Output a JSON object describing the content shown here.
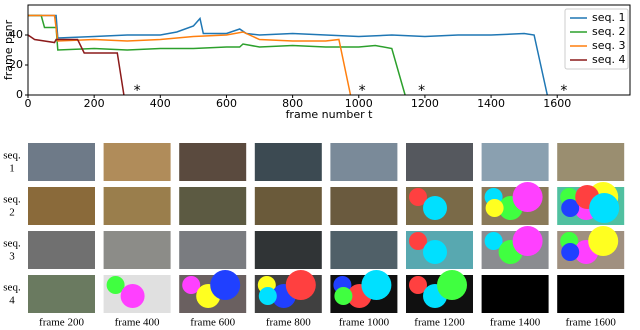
{
  "chart_data": {
    "type": "line",
    "xlabel": "frame number t",
    "ylabel": "frame psnr",
    "xlim": [
      0,
      1820
    ],
    "ylim": [
      0,
      60
    ],
    "xticks": [
      0,
      200,
      400,
      600,
      800,
      1000,
      1200,
      1400,
      1600
    ],
    "yticks": [
      0,
      20,
      40
    ],
    "legend": "upper right",
    "series": [
      {
        "name": "seq. 1",
        "color": "#1f77b4",
        "x": [
          0,
          85,
          90,
          200,
          300,
          400,
          450,
          500,
          520,
          530,
          600,
          640,
          660,
          700,
          800,
          900,
          1000,
          1100,
          1200,
          1300,
          1400,
          1500,
          1530,
          1570
        ],
        "values": [
          53,
          53,
          38,
          39,
          40,
          40,
          42,
          46,
          51,
          41,
          41,
          44,
          41,
          40,
          41,
          40,
          39,
          40,
          39,
          40,
          40,
          41,
          40,
          0
        ]
      },
      {
        "name": "seq. 2",
        "color": "#2ca02c",
        "x": [
          0,
          40,
          50,
          85,
          90,
          200,
          300,
          400,
          500,
          600,
          640,
          650,
          700,
          800,
          900,
          1000,
          1050,
          1100,
          1140
        ],
        "values": [
          53,
          53,
          45,
          45,
          30,
          31,
          30,
          31,
          31,
          32,
          32,
          34,
          32,
          33,
          32,
          32,
          33,
          31,
          0
        ]
      },
      {
        "name": "seq. 3",
        "color": "#ff7f0e",
        "x": [
          0,
          80,
          90,
          200,
          300,
          400,
          500,
          600,
          650,
          700,
          800,
          900,
          940,
          975
        ],
        "values": [
          53,
          53,
          36,
          37,
          36,
          37,
          39,
          40,
          42,
          37,
          36,
          36,
          37,
          0
        ]
      },
      {
        "name": "seq. 4",
        "color": "#8b1a1a",
        "x": [
          0,
          20,
          80,
          85,
          150,
          170,
          200,
          270,
          290
        ],
        "values": [
          40,
          37,
          35,
          37,
          37,
          28,
          28,
          28,
          0
        ]
      }
    ],
    "markers": {
      "marker": "*",
      "color": "#e03030",
      "x": [
        330,
        1010,
        1190,
        1620
      ],
      "y": [
        4,
        4,
        4,
        4
      ]
    }
  },
  "grid": {
    "row_labels": [
      [
        "seq.",
        "1"
      ],
      [
        "seq.",
        "2"
      ],
      [
        "seq.",
        "3"
      ],
      [
        "seq.",
        "4"
      ]
    ],
    "column_labels": [
      "frame 200",
      "frame 400",
      "frame 600",
      "frame 800",
      "frame 1000",
      "frame 1200",
      "frame 1400",
      "frame 1600"
    ]
  }
}
